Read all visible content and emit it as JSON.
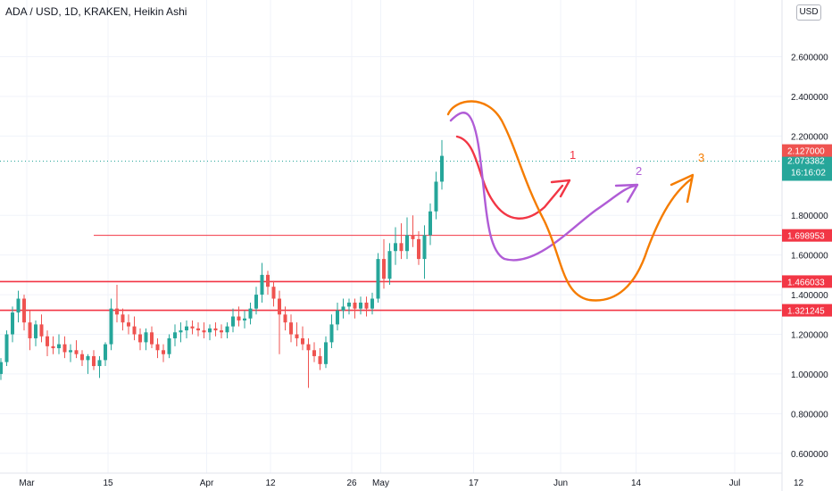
{
  "header": {
    "title": "ADA / USD, 1D, KRAKEN, Heikin Ashi",
    "unit_button": "USD"
  },
  "colors": {
    "up": "#26a69a",
    "down": "#ef5350",
    "level": "#f23645",
    "grid": "#f0f3fa",
    "axis_text": "#131722",
    "path1": "#f23645",
    "path2": "#b05cd6",
    "path3": "#f57c00"
  },
  "chart_data": {
    "type": "candlestick",
    "title": "ADA / USD, 1D, KRAKEN, Heikin Ashi",
    "ylim": [
      0.5,
      2.85
    ],
    "y_ticks": [
      "2.600000",
      "2.400000",
      "2.200000",
      "1.800000",
      "1.600000",
      "1.400000",
      "1.200000",
      "1.000000",
      "0.800000",
      "0.600000"
    ],
    "x_ticks": [
      {
        "label": "Mar",
        "day": 0
      },
      {
        "label": "15",
        "day": 14
      },
      {
        "label": "Apr",
        "day": 31
      },
      {
        "label": "12",
        "day": 42
      },
      {
        "label": "26",
        "day": 56
      },
      {
        "label": "May",
        "day": 61
      },
      {
        "label": "17",
        "day": 77
      },
      {
        "label": "Jun",
        "day": 92
      },
      {
        "label": "14",
        "day": 105
      },
      {
        "label": "Jul",
        "day": 122
      },
      {
        "label": "12",
        "day": 133
      }
    ],
    "candles_ohlc": [
      [
        1.0,
        1.08,
        0.97,
        1.06
      ],
      [
        1.06,
        1.22,
        1.04,
        1.2
      ],
      [
        1.2,
        1.34,
        1.16,
        1.31
      ],
      [
        1.31,
        1.42,
        1.26,
        1.38
      ],
      [
        1.38,
        1.4,
        1.22,
        1.26
      ],
      [
        1.26,
        1.32,
        1.12,
        1.18
      ],
      [
        1.18,
        1.27,
        1.14,
        1.25
      ],
      [
        1.25,
        1.3,
        1.16,
        1.19
      ],
      [
        1.19,
        1.22,
        1.09,
        1.14
      ],
      [
        1.14,
        1.19,
        1.1,
        1.13
      ],
      [
        1.13,
        1.2,
        1.1,
        1.15
      ],
      [
        1.15,
        1.19,
        1.08,
        1.11
      ],
      [
        1.11,
        1.15,
        1.06,
        1.12
      ],
      [
        1.12,
        1.17,
        1.08,
        1.1
      ],
      [
        1.1,
        1.12,
        1.04,
        1.07
      ],
      [
        1.07,
        1.1,
        1.0,
        1.09
      ],
      [
        1.09,
        1.12,
        1.02,
        1.04
      ],
      [
        1.04,
        1.09,
        0.98,
        1.07
      ],
      [
        1.07,
        1.16,
        1.04,
        1.15
      ],
      [
        1.15,
        1.38,
        1.12,
        1.33
      ],
      [
        1.33,
        1.45,
        1.26,
        1.3
      ],
      [
        1.3,
        1.33,
        1.22,
        1.26
      ],
      [
        1.26,
        1.3,
        1.2,
        1.24
      ],
      [
        1.24,
        1.29,
        1.17,
        1.2
      ],
      [
        1.2,
        1.23,
        1.12,
        1.16
      ],
      [
        1.16,
        1.23,
        1.12,
        1.21
      ],
      [
        1.21,
        1.24,
        1.13,
        1.15
      ],
      [
        1.15,
        1.18,
        1.08,
        1.12
      ],
      [
        1.12,
        1.15,
        1.06,
        1.1
      ],
      [
        1.1,
        1.2,
        1.08,
        1.18
      ],
      [
        1.18,
        1.25,
        1.14,
        1.21
      ],
      [
        1.21,
        1.26,
        1.16,
        1.22
      ],
      [
        1.22,
        1.27,
        1.18,
        1.24
      ],
      [
        1.24,
        1.27,
        1.2,
        1.23
      ],
      [
        1.23,
        1.26,
        1.19,
        1.22
      ],
      [
        1.22,
        1.26,
        1.18,
        1.21
      ],
      [
        1.21,
        1.25,
        1.17,
        1.23
      ],
      [
        1.23,
        1.26,
        1.19,
        1.22
      ],
      [
        1.22,
        1.25,
        1.18,
        1.21
      ],
      [
        1.21,
        1.26,
        1.18,
        1.24
      ],
      [
        1.24,
        1.33,
        1.21,
        1.29
      ],
      [
        1.29,
        1.34,
        1.24,
        1.27
      ],
      [
        1.27,
        1.32,
        1.23,
        1.28
      ],
      [
        1.28,
        1.36,
        1.25,
        1.33
      ],
      [
        1.33,
        1.44,
        1.3,
        1.4
      ],
      [
        1.4,
        1.56,
        1.36,
        1.5
      ],
      [
        1.5,
        1.52,
        1.4,
        1.44
      ],
      [
        1.44,
        1.47,
        1.34,
        1.38
      ],
      [
        1.38,
        1.42,
        1.1,
        1.3
      ],
      [
        1.3,
        1.34,
        1.22,
        1.26
      ],
      [
        1.26,
        1.3,
        1.16,
        1.2
      ],
      [
        1.2,
        1.26,
        1.14,
        1.18
      ],
      [
        1.18,
        1.24,
        1.12,
        1.15
      ],
      [
        1.15,
        1.18,
        0.93,
        1.12
      ],
      [
        1.12,
        1.16,
        1.06,
        1.09
      ],
      [
        1.09,
        1.13,
        1.02,
        1.05
      ],
      [
        1.05,
        1.19,
        1.03,
        1.16
      ],
      [
        1.16,
        1.3,
        1.13,
        1.25
      ],
      [
        1.25,
        1.36,
        1.22,
        1.32
      ],
      [
        1.32,
        1.38,
        1.28,
        1.34
      ],
      [
        1.34,
        1.38,
        1.3,
        1.36
      ],
      [
        1.36,
        1.38,
        1.28,
        1.33
      ],
      [
        1.33,
        1.39,
        1.3,
        1.36
      ],
      [
        1.36,
        1.39,
        1.29,
        1.33
      ],
      [
        1.33,
        1.41,
        1.3,
        1.38
      ],
      [
        1.38,
        1.61,
        1.36,
        1.58
      ],
      [
        1.58,
        1.68,
        1.43,
        1.48
      ],
      [
        1.48,
        1.66,
        1.45,
        1.62
      ],
      [
        1.62,
        1.74,
        1.55,
        1.66
      ],
      [
        1.66,
        1.76,
        1.58,
        1.62
      ],
      [
        1.62,
        1.79,
        1.58,
        1.7
      ],
      [
        1.7,
        1.8,
        1.64,
        1.68
      ],
      [
        1.68,
        1.72,
        1.55,
        1.58
      ],
      [
        1.58,
        1.75,
        1.48,
        1.7
      ],
      [
        1.7,
        1.86,
        1.65,
        1.82
      ],
      [
        1.82,
        2.02,
        1.78,
        1.97
      ],
      [
        1.97,
        2.18,
        1.93,
        2.1
      ]
    ],
    "horizontal_levels": [
      {
        "value": 1.698953,
        "label": "1.698953",
        "thin": true
      },
      {
        "value": 1.466033,
        "label": "1.466033",
        "thin": false
      },
      {
        "value": 1.321245,
        "label": "1.321245",
        "thin": false
      }
    ],
    "last_price": {
      "value": 2.073382,
      "label": "2.073382",
      "countdown": "16:16:02"
    },
    "high_marker": {
      "value": 2.127,
      "label": "2.127000"
    },
    "projection_labels": [
      {
        "text": "1",
        "color_key": "path1"
      },
      {
        "text": "2",
        "color_key": "path2"
      },
      {
        "text": "3",
        "color_key": "path3"
      }
    ]
  }
}
